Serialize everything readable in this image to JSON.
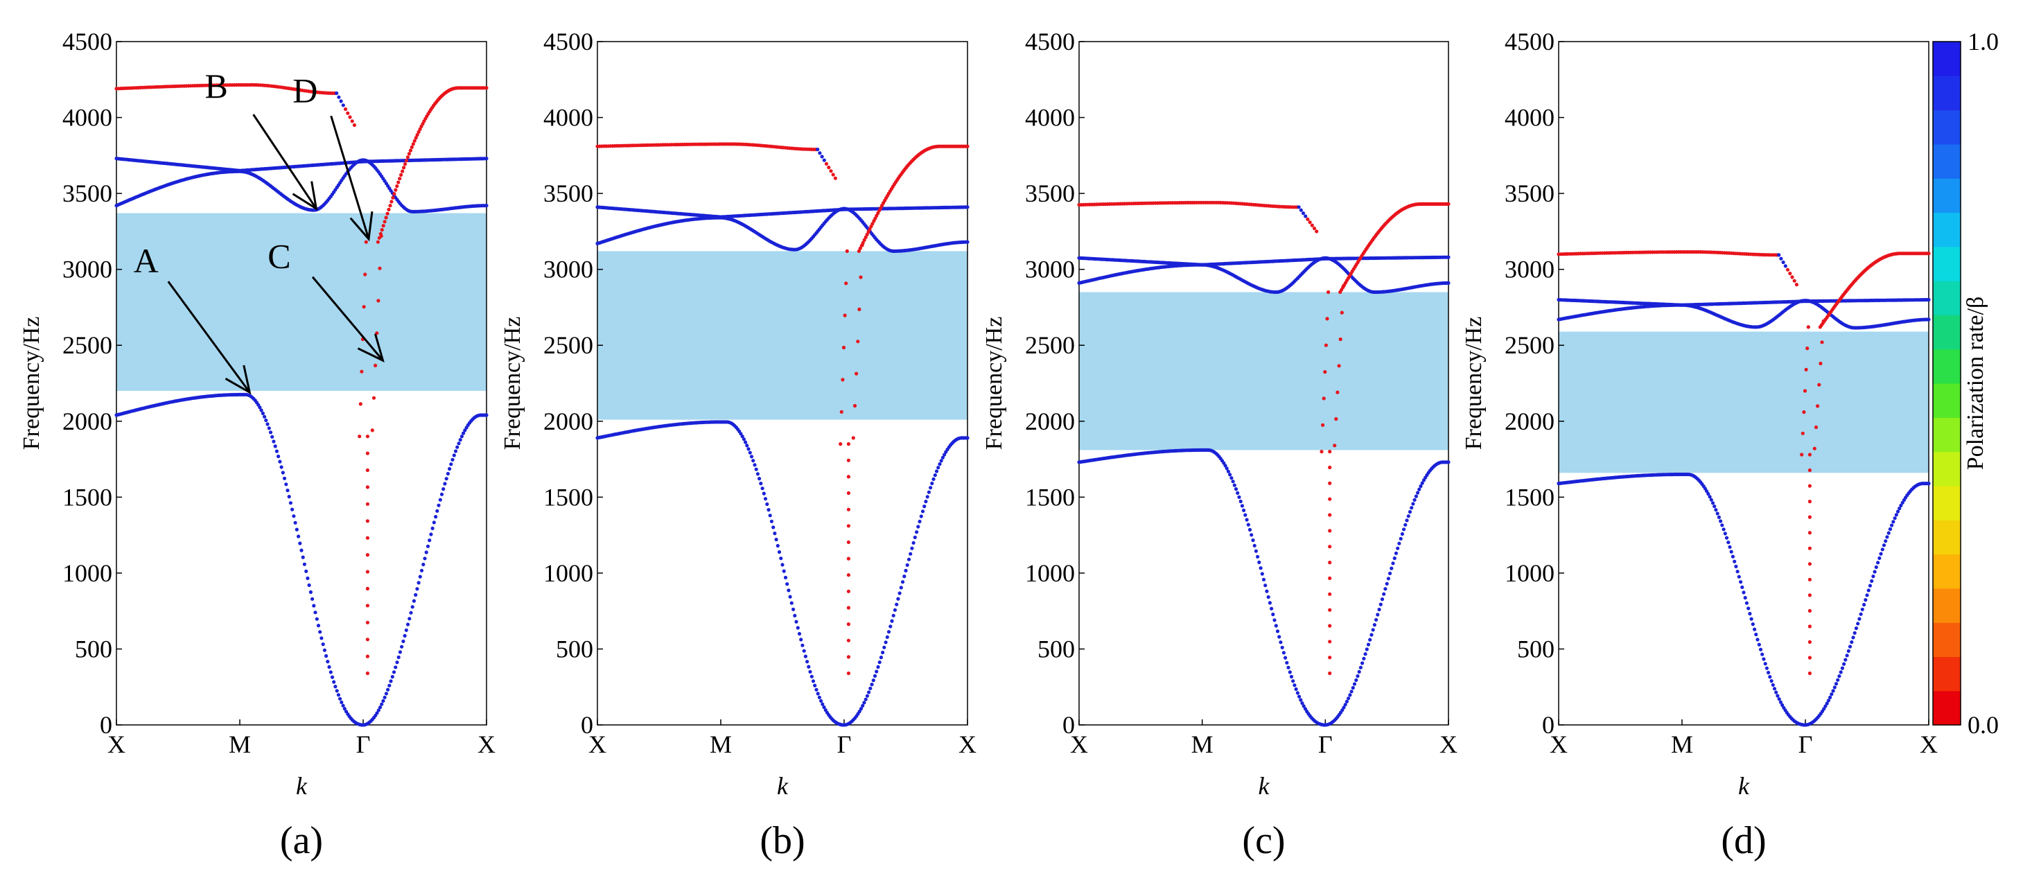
{
  "chart_data": [
    {
      "type": "scatter",
      "panel_label": "(a)",
      "xlabel": "k",
      "ylabel": "Frequency/Hz",
      "ylim": [
        0,
        4500
      ],
      "yticks": [
        0,
        500,
        1000,
        1500,
        2000,
        2500,
        3000,
        3500,
        4000,
        4500
      ],
      "xticks": [
        "X",
        "M",
        "Γ",
        "X"
      ],
      "band_gap": [
        2200,
        3370
      ],
      "bands": {
        "low_blue": {
          "edge": 2040,
          "peak": 2175,
          "at_gamma": 0
        },
        "blue_1": {
          "at_x": 3420,
          "at_m": 3645,
          "dip": 3390,
          "at_gamma": 3720,
          "dip2": 3380,
          "at_x_end": 3420
        },
        "blue_2": {
          "at_x": 3730,
          "at_m": 3650,
          "at_gamma": 3710,
          "at_x_end": 3730
        },
        "red_top": {
          "at_x": 4190,
          "at_m": 4215,
          "before_gamma": 4160,
          "at_x_end": 4195
        },
        "red_scatter_low": [
          1900,
          3180
        ],
        "red_scatter_high": [
          3180,
          3950
        ]
      },
      "annotations": [
        {
          "label": "A"
        },
        {
          "label": "B"
        },
        {
          "label": "C"
        },
        {
          "label": "D"
        }
      ]
    },
    {
      "type": "scatter",
      "panel_label": "(b)",
      "xlabel": "k",
      "ylabel": "Frequency/Hz",
      "ylim": [
        0,
        4500
      ],
      "yticks": [
        0,
        500,
        1000,
        1500,
        2000,
        2500,
        3000,
        3500,
        4000,
        4500
      ],
      "xticks": [
        "X",
        "M",
        "Γ",
        "X"
      ],
      "band_gap": [
        2010,
        3120
      ],
      "bands": {
        "low_blue": {
          "edge": 1890,
          "peak": 1995,
          "at_gamma": 0
        },
        "blue_1": {
          "at_x": 3170,
          "at_m": 3340,
          "dip": 3130,
          "at_gamma": 3400,
          "dip2": 3120,
          "at_x_end": 3180
        },
        "blue_2": {
          "at_x": 3410,
          "at_m": 3345,
          "at_gamma": 3395,
          "at_x_end": 3410
        },
        "red_top": {
          "at_x": 3810,
          "at_m": 3825,
          "before_gamma": 3790,
          "at_x_end": 3810
        },
        "red_scatter_low": [
          1850,
          3120
        ],
        "red_scatter_high": [
          3120,
          3600
        ]
      },
      "annotations": []
    },
    {
      "type": "scatter",
      "panel_label": "(c)",
      "xlabel": "k",
      "ylabel": "Frequency/Hz",
      "ylim": [
        0,
        4500
      ],
      "yticks": [
        0,
        500,
        1000,
        1500,
        2000,
        2500,
        3000,
        3500,
        4000,
        4500
      ],
      "xticks": [
        "X",
        "M",
        "Γ",
        "X"
      ],
      "band_gap": [
        1810,
        2850
      ],
      "bands": {
        "low_blue": {
          "edge": 1730,
          "peak": 1810,
          "at_gamma": 0
        },
        "blue_1": {
          "at_x": 2910,
          "at_m": 3030,
          "dip": 2850,
          "at_gamma": 3075,
          "dip2": 2850,
          "at_x_end": 2910
        },
        "blue_2": {
          "at_x": 3075,
          "at_m": 3030,
          "at_gamma": 3070,
          "at_x_end": 3080
        },
        "red_top": {
          "at_x": 3425,
          "at_m": 3440,
          "before_gamma": 3410,
          "at_x_end": 3430
        },
        "red_scatter_low": [
          1800,
          2850
        ],
        "red_scatter_high": [
          2850,
          3250
        ]
      },
      "annotations": []
    },
    {
      "type": "scatter",
      "panel_label": "(d)",
      "xlabel": "k",
      "ylabel": "Frequency/Hz",
      "ylim": [
        0,
        4500
      ],
      "yticks": [
        0,
        500,
        1000,
        1500,
        2000,
        2500,
        3000,
        3500,
        4000,
        4500
      ],
      "xticks": [
        "X",
        "M",
        "Γ",
        "X"
      ],
      "band_gap": [
        1660,
        2590
      ],
      "bands": {
        "low_blue": {
          "edge": 1590,
          "peak": 1650,
          "at_gamma": 0
        },
        "blue_1": {
          "at_x": 2670,
          "at_m": 2765,
          "dip": 2620,
          "at_gamma": 2795,
          "dip2": 2615,
          "at_x_end": 2670
        },
        "blue_2": {
          "at_x": 2800,
          "at_m": 2765,
          "at_gamma": 2790,
          "at_x_end": 2800
        },
        "red_top": {
          "at_x": 3100,
          "at_m": 3115,
          "before_gamma": 3095,
          "at_x_end": 3105
        },
        "red_scatter_low": [
          1780,
          2620
        ],
        "red_scatter_high": [
          2620,
          2900
        ]
      },
      "annotations": []
    }
  ],
  "colorbar": {
    "label": "Polarization rate/β",
    "min_label": "0.0",
    "max_label": "1.0",
    "colors": [
      "#e8000b",
      "#f2300a",
      "#f85e0a",
      "#fb8a08",
      "#fdb307",
      "#f5d10a",
      "#e6ea0f",
      "#c4f215",
      "#8ef01c",
      "#55e828",
      "#2adf47",
      "#16d67c",
      "#0cd7b0",
      "#0ad9e0",
      "#10bdf2",
      "#1594f5",
      "#1a6cf3",
      "#1d4cf0",
      "#1f30ec",
      "#1e1dea"
    ]
  },
  "colors": {
    "band_gap_fill": "#a7d8ef",
    "red": "#e8141c",
    "blue": "#1a22d6"
  }
}
